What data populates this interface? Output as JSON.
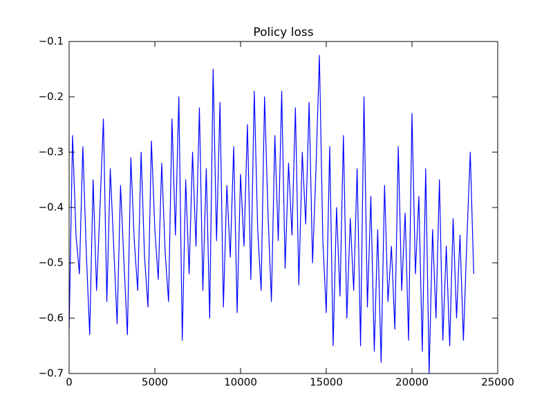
{
  "chart_data": {
    "type": "line",
    "title": "Policy loss",
    "x": [
      0,
      200,
      400,
      600,
      800,
      1000,
      1200,
      1400,
      1600,
      1800,
      2000,
      2200,
      2400,
      2600,
      2800,
      3000,
      3200,
      3400,
      3600,
      3800,
      4000,
      4200,
      4400,
      4600,
      4800,
      5000,
      5200,
      5400,
      5600,
      5800,
      6000,
      6200,
      6400,
      6600,
      6800,
      7000,
      7200,
      7400,
      7600,
      7800,
      8000,
      8200,
      8400,
      8600,
      8800,
      9000,
      9200,
      9400,
      9600,
      9800,
      10000,
      10200,
      10400,
      10600,
      10800,
      11000,
      11200,
      11400,
      11600,
      11800,
      12000,
      12200,
      12400,
      12600,
      12800,
      13000,
      13200,
      13400,
      13600,
      13800,
      14000,
      14200,
      14400,
      14600,
      14800,
      15000,
      15200,
      15400,
      15600,
      15800,
      16000,
      16200,
      16400,
      16600,
      16800,
      17000,
      17200,
      17400,
      17600,
      17800,
      18000,
      18200,
      18400,
      18600,
      18800,
      19000,
      19200,
      19400,
      19600,
      19800,
      20000,
      20200,
      20400,
      20600,
      20800,
      21000,
      21200,
      21400,
      21600,
      21800,
      22000,
      22200,
      22400,
      22600,
      22800,
      23000,
      23200,
      23400,
      23600
    ],
    "series": [
      {
        "color": "#0000ff",
        "values": [
          -0.62,
          -0.27,
          -0.45,
          -0.52,
          -0.29,
          -0.48,
          -0.63,
          -0.35,
          -0.55,
          -0.4,
          -0.24,
          -0.57,
          -0.33,
          -0.47,
          -0.61,
          -0.36,
          -0.5,
          -0.63,
          -0.31,
          -0.46,
          -0.55,
          -0.3,
          -0.49,
          -0.58,
          -0.28,
          -0.44,
          -0.53,
          -0.32,
          -0.48,
          -0.57,
          -0.24,
          -0.45,
          -0.2,
          -0.64,
          -0.35,
          -0.52,
          -0.3,
          -0.47,
          -0.22,
          -0.55,
          -0.33,
          -0.6,
          -0.15,
          -0.46,
          -0.21,
          -0.58,
          -0.36,
          -0.49,
          -0.29,
          -0.59,
          -0.34,
          -0.47,
          -0.25,
          -0.53,
          -0.19,
          -0.44,
          -0.55,
          -0.2,
          -0.41,
          -0.57,
          -0.27,
          -0.46,
          -0.19,
          -0.51,
          -0.32,
          -0.45,
          -0.22,
          -0.54,
          -0.3,
          -0.43,
          -0.21,
          -0.5,
          -0.33,
          -0.125,
          -0.46,
          -0.59,
          -0.29,
          -0.65,
          -0.4,
          -0.56,
          -0.27,
          -0.6,
          -0.42,
          -0.55,
          -0.33,
          -0.65,
          -0.2,
          -0.58,
          -0.38,
          -0.66,
          -0.44,
          -0.68,
          -0.36,
          -0.57,
          -0.47,
          -0.62,
          -0.29,
          -0.55,
          -0.41,
          -0.64,
          -0.23,
          -0.52,
          -0.38,
          -0.66,
          -0.33,
          -0.7,
          -0.44,
          -0.6,
          -0.35,
          -0.64,
          -0.47,
          -0.65,
          -0.42,
          -0.6,
          -0.45,
          -0.64,
          -0.46,
          -0.3,
          -0.52
        ]
      }
    ],
    "xlim": [
      0,
      25000
    ],
    "xticks": [
      0,
      5000,
      10000,
      15000,
      20000,
      25000
    ],
    "ylim": [
      -0.7,
      -0.1
    ],
    "yticks": [
      {
        "value": -0.7,
        "label": "−0.7"
      },
      {
        "value": -0.6,
        "label": "−0.6"
      },
      {
        "value": -0.5,
        "label": "−0.5"
      },
      {
        "value": -0.4,
        "label": "−0.4"
      },
      {
        "value": -0.3,
        "label": "−0.3"
      },
      {
        "value": -0.2,
        "label": "−0.2"
      },
      {
        "value": -0.1,
        "label": "−0.1"
      }
    ],
    "grid": false
  }
}
